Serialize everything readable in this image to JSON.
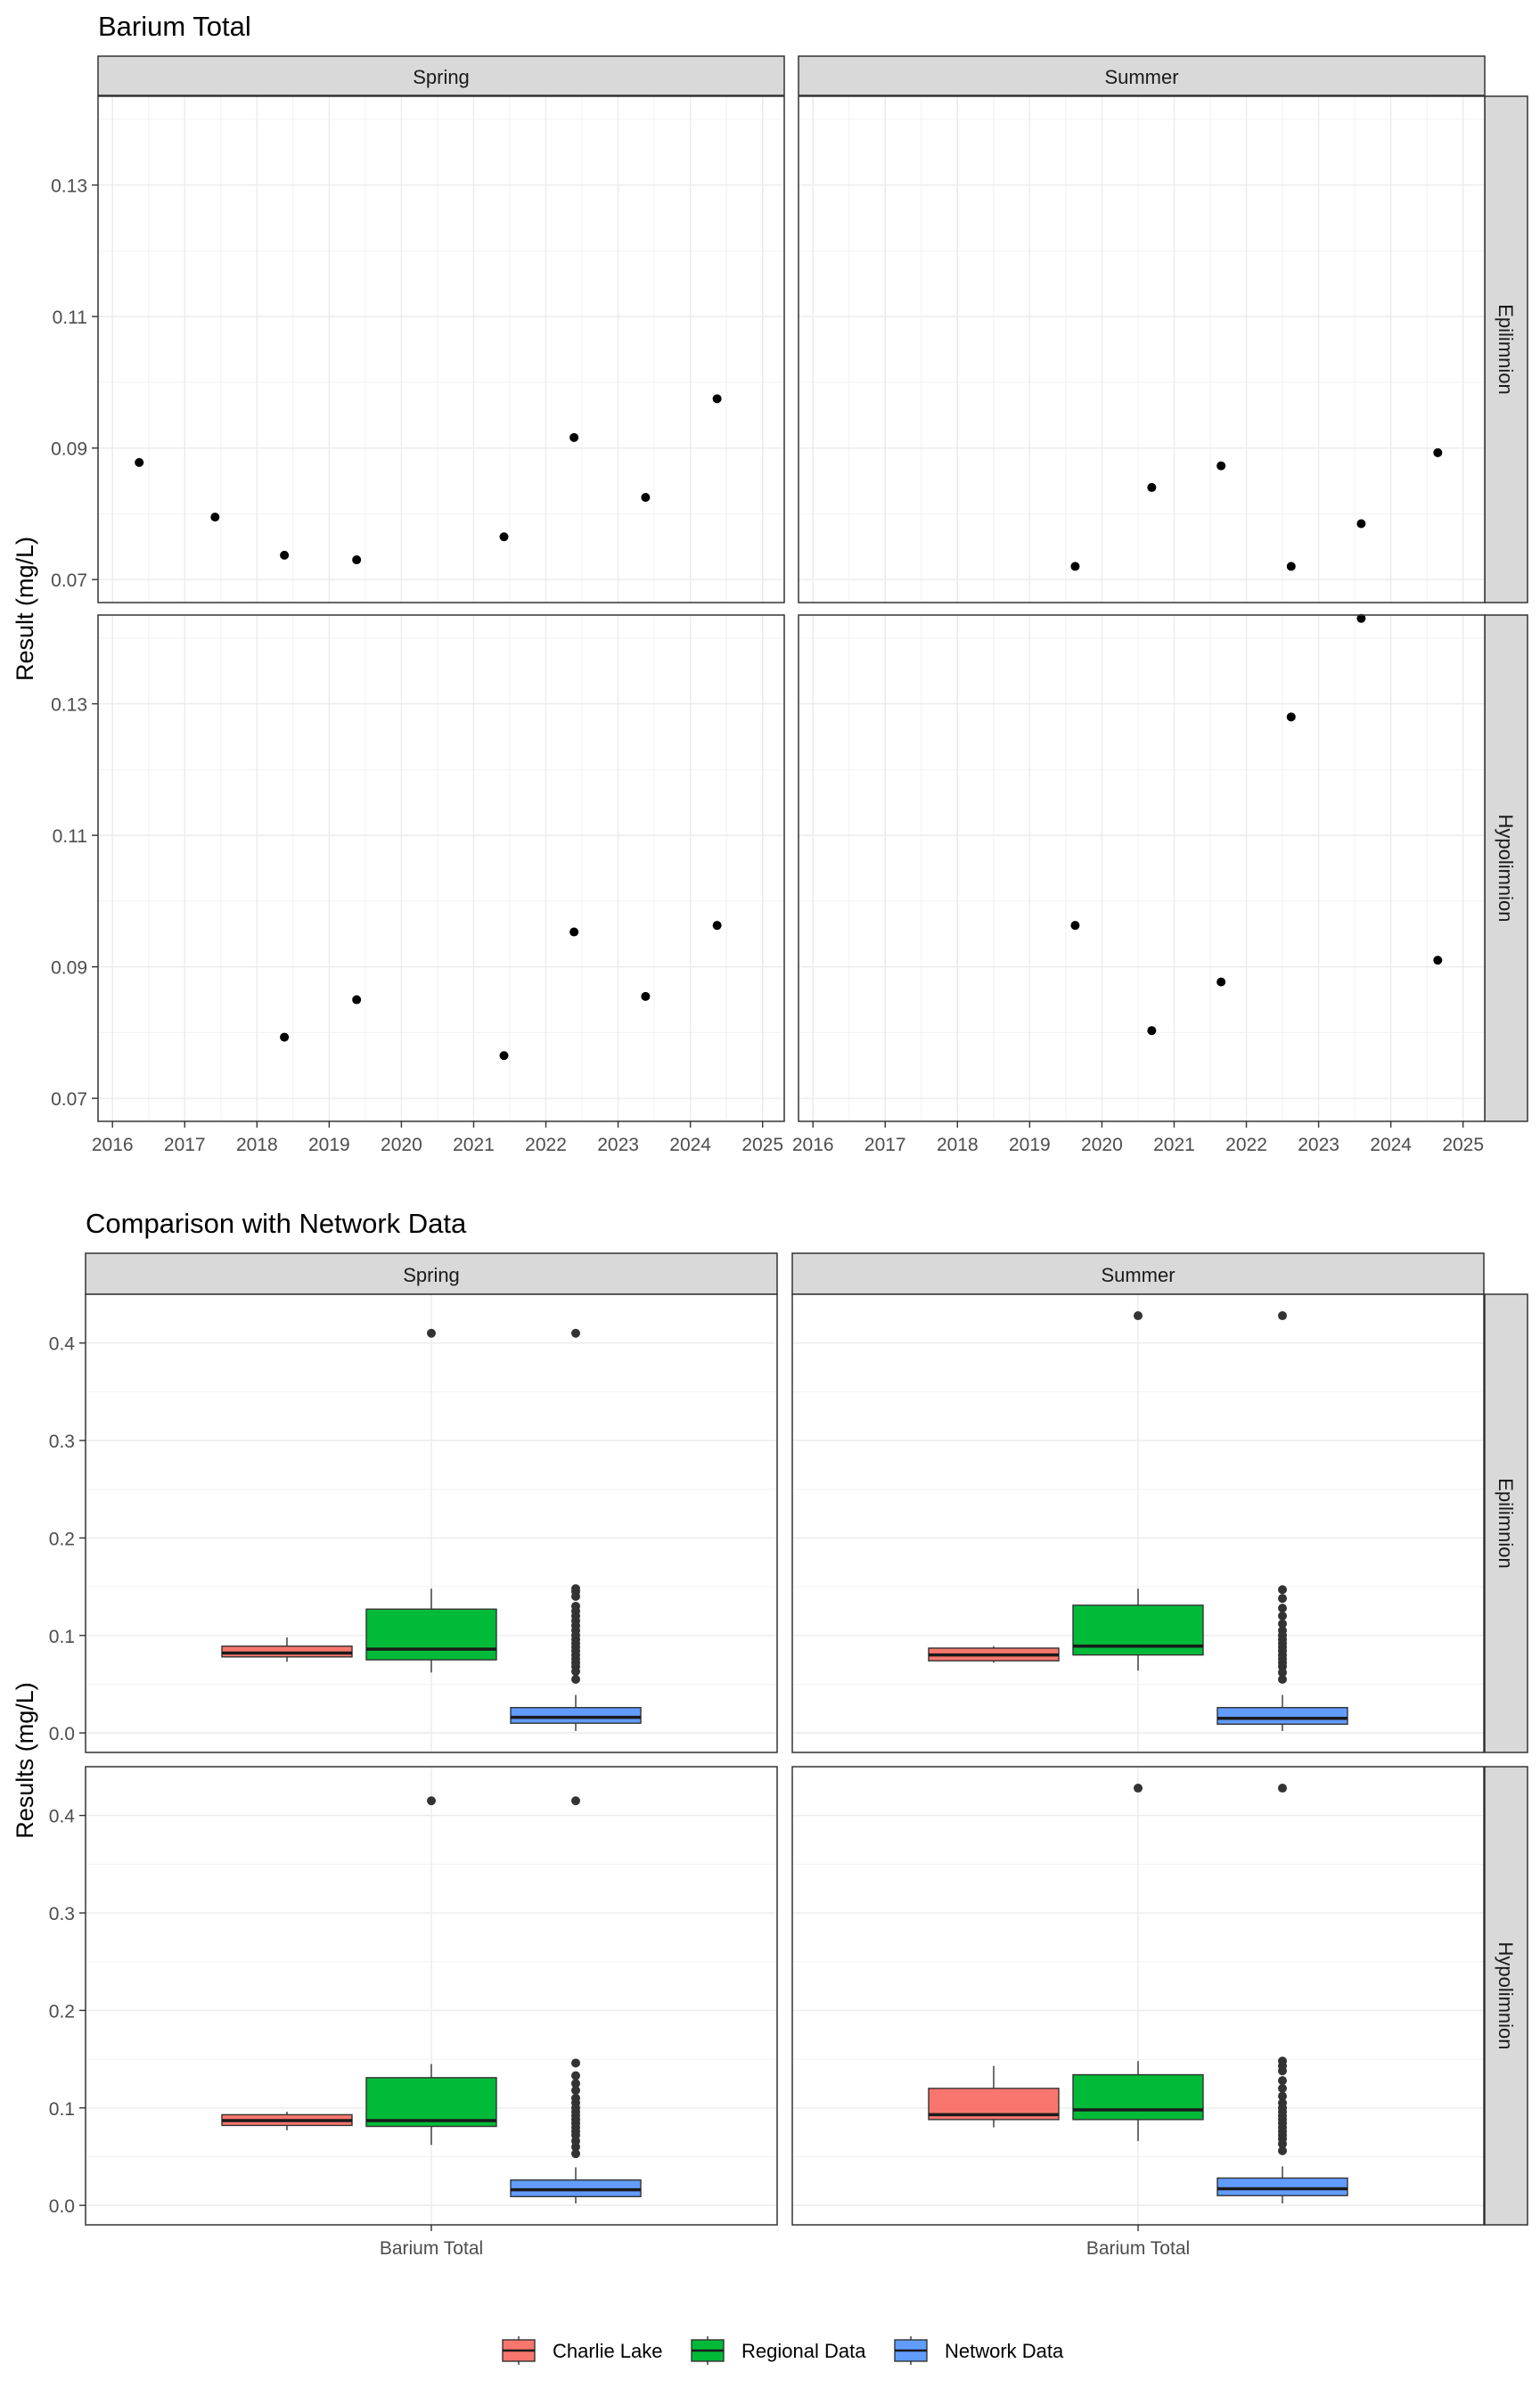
{
  "chart_data": [
    {
      "type": "scatter",
      "title": "Barium Total",
      "xlabel": "",
      "ylabel": "Result (mg/L)",
      "facet_cols": [
        "Spring",
        "Summer"
      ],
      "facet_rows": [
        "Epilimnion",
        "Hypolimnion"
      ],
      "xlim": [
        2015.8,
        2025.3
      ],
      "ylim": [
        0.0665,
        0.1435
      ],
      "x_ticks": [
        2016,
        2017,
        2018,
        2019,
        2020,
        2021,
        2022,
        2023,
        2024,
        2025
      ],
      "y_ticks": [
        0.07,
        0.09,
        0.11,
        0.13
      ],
      "y_tick_labels": [
        "0.07",
        "0.09",
        "0.11",
        "0.13"
      ],
      "grid": true,
      "panels": [
        {
          "col": "Spring",
          "row": "Epilimnion",
          "points": [
            [
              2016.37,
              0.0878
            ],
            [
              2017.42,
              0.0795
            ],
            [
              2018.38,
              0.0737
            ],
            [
              2019.38,
              0.073
            ],
            [
              2021.42,
              0.0765
            ],
            [
              2022.39,
              0.0916
            ],
            [
              2023.38,
              0.0825
            ],
            [
              2024.37,
              0.0975
            ]
          ]
        },
        {
          "col": "Summer",
          "row": "Epilimnion",
          "points": [
            [
              2019.63,
              0.072
            ],
            [
              2020.69,
              0.084
            ],
            [
              2021.65,
              0.0873
            ],
            [
              2022.62,
              0.072
            ],
            [
              2023.59,
              0.0785
            ],
            [
              2024.65,
              0.0893
            ]
          ]
        },
        {
          "col": "Spring",
          "row": "Hypolimnion",
          "points": [
            [
              2018.38,
              0.0793
            ],
            [
              2019.38,
              0.085
            ],
            [
              2021.42,
              0.0765
            ],
            [
              2022.39,
              0.0953
            ],
            [
              2023.38,
              0.0855
            ],
            [
              2024.37,
              0.0963
            ]
          ]
        },
        {
          "col": "Summer",
          "row": "Hypolimnion",
          "points": [
            [
              2019.63,
              0.0963
            ],
            [
              2020.69,
              0.0803
            ],
            [
              2021.65,
              0.0877
            ],
            [
              2022.62,
              0.128
            ],
            [
              2023.59,
              0.143
            ],
            [
              2024.65,
              0.091
            ]
          ]
        }
      ]
    },
    {
      "type": "box",
      "title": "Comparison with Network Data",
      "xlabel": "",
      "ylabel": "Results (mg/L)",
      "facet_cols": [
        "Spring",
        "Summer"
      ],
      "facet_rows": [
        "Epilimnion",
        "Hypolimnion"
      ],
      "categories": [
        "Barium Total"
      ],
      "ylim": [
        -0.02,
        0.45
      ],
      "y_ticks": [
        0.0,
        0.1,
        0.2,
        0.3,
        0.4
      ],
      "y_tick_labels": [
        "0.0",
        "0.1",
        "0.2",
        "0.3",
        "0.4"
      ],
      "grid": true,
      "legend_position": "bottom",
      "series": [
        {
          "name": "Charlie Lake",
          "color": "#F8766D"
        },
        {
          "name": "Regional Data",
          "color": "#00BA38"
        },
        {
          "name": "Network Data",
          "color": "#619CFF"
        }
      ],
      "panels": [
        {
          "col": "Spring",
          "row": "Epilimnion",
          "boxes": [
            {
              "series": "Charlie Lake",
              "whisker_low": 0.073,
              "q1": 0.078,
              "median": 0.082,
              "q3": 0.089,
              "whisker_high": 0.098,
              "outliers": []
            },
            {
              "series": "Regional Data",
              "whisker_low": 0.062,
              "q1": 0.075,
              "median": 0.086,
              "q3": 0.127,
              "whisker_high": 0.148,
              "outliers": [
                0.41
              ]
            },
            {
              "series": "Network Data",
              "whisker_low": 0.002,
              "q1": 0.01,
              "median": 0.016,
              "q3": 0.026,
              "whisker_high": 0.039,
              "outliers": [
                0.055,
                0.063,
                0.068,
                0.072,
                0.076,
                0.08,
                0.084,
                0.088,
                0.092,
                0.096,
                0.1,
                0.105,
                0.11,
                0.115,
                0.12,
                0.125,
                0.13,
                0.14,
                0.145,
                0.148,
                0.41
              ]
            }
          ]
        },
        {
          "col": "Summer",
          "row": "Epilimnion",
          "boxes": [
            {
              "series": "Charlie Lake",
              "whisker_low": 0.072,
              "q1": 0.074,
              "median": 0.08,
              "q3": 0.087,
              "whisker_high": 0.089,
              "outliers": []
            },
            {
              "series": "Regional Data",
              "whisker_low": 0.064,
              "q1": 0.08,
              "median": 0.089,
              "q3": 0.131,
              "whisker_high": 0.148,
              "outliers": [
                0.428
              ]
            },
            {
              "series": "Network Data",
              "whisker_low": 0.002,
              "q1": 0.009,
              "median": 0.015,
              "q3": 0.026,
              "whisker_high": 0.039,
              "outliers": [
                0.055,
                0.062,
                0.068,
                0.072,
                0.076,
                0.08,
                0.084,
                0.088,
                0.092,
                0.096,
                0.1,
                0.105,
                0.112,
                0.12,
                0.128,
                0.138,
                0.147,
                0.428
              ]
            }
          ]
        },
        {
          "col": "Spring",
          "row": "Hypolimnion",
          "boxes": [
            {
              "series": "Charlie Lake",
              "whisker_low": 0.077,
              "q1": 0.082,
              "median": 0.087,
              "q3": 0.093,
              "whisker_high": 0.096,
              "outliers": []
            },
            {
              "series": "Regional Data",
              "whisker_low": 0.062,
              "q1": 0.081,
              "median": 0.087,
              "q3": 0.131,
              "whisker_high": 0.145,
              "outliers": [
                0.415
              ]
            },
            {
              "series": "Network Data",
              "whisker_low": 0.002,
              "q1": 0.009,
              "median": 0.016,
              "q3": 0.026,
              "whisker_high": 0.039,
              "outliers": [
                0.053,
                0.06,
                0.066,
                0.072,
                0.076,
                0.08,
                0.084,
                0.088,
                0.092,
                0.096,
                0.1,
                0.105,
                0.11,
                0.118,
                0.125,
                0.133,
                0.146,
                0.415
              ]
            }
          ]
        },
        {
          "col": "Summer",
          "row": "Hypolimnion",
          "boxes": [
            {
              "series": "Charlie Lake",
              "whisker_low": 0.08,
              "q1": 0.088,
              "median": 0.093,
              "q3": 0.12,
              "whisker_high": 0.143,
              "outliers": []
            },
            {
              "series": "Regional Data",
              "whisker_low": 0.066,
              "q1": 0.088,
              "median": 0.098,
              "q3": 0.134,
              "whisker_high": 0.148,
              "outliers": [
                0.428
              ]
            },
            {
              "series": "Network Data",
              "whisker_low": 0.002,
              "q1": 0.01,
              "median": 0.017,
              "q3": 0.028,
              "whisker_high": 0.04,
              "outliers": [
                0.056,
                0.063,
                0.068,
                0.072,
                0.076,
                0.08,
                0.084,
                0.088,
                0.092,
                0.096,
                0.1,
                0.105,
                0.112,
                0.12,
                0.128,
                0.138,
                0.143,
                0.148,
                0.428
              ]
            }
          ]
        }
      ]
    }
  ]
}
